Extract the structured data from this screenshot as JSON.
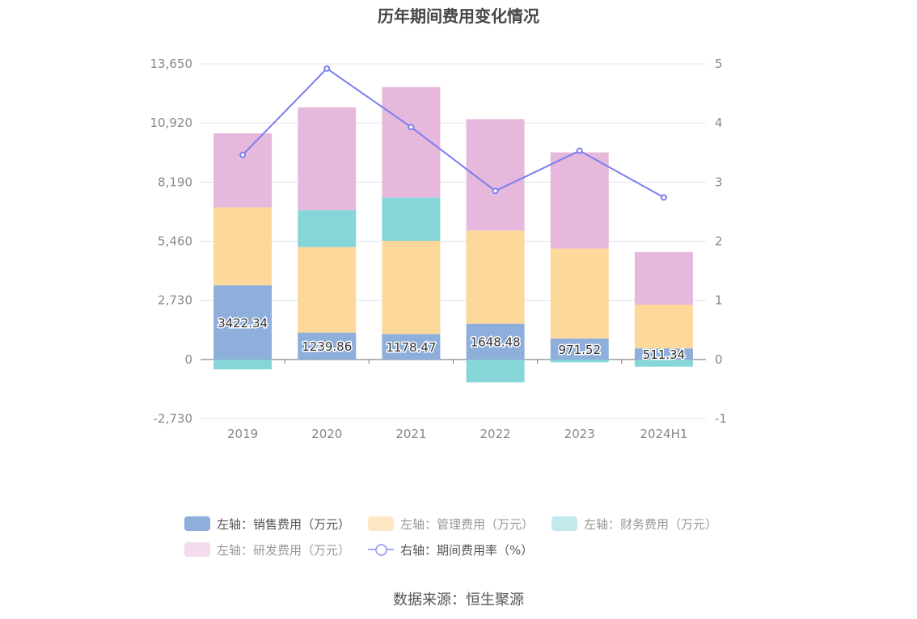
{
  "title": "历年期间费用变化情况",
  "source": "数据来源：恒生聚源",
  "colors": {
    "sales": "#8eaedb",
    "admin": "#fdd89b",
    "finance": "#86d5d8",
    "rd": "#e6b8db",
    "rate": "#7b7ef0",
    "grid": "#e0e3ef"
  },
  "legend": [
    {
      "label": "左轴：销售费用（万元）",
      "color": "#8eaedb",
      "dim": false
    },
    {
      "label": "左轴：管理费用（万元）",
      "color": "#fde7c4",
      "dim": true
    },
    {
      "label": "左轴：财务费用（万元）",
      "color": "#c2e9eb",
      "dim": true
    },
    {
      "label": "左轴：研发费用（万元）",
      "color": "#f2dcee",
      "dim": true
    },
    {
      "label": "右轴：期间费用率（%）",
      "color": "#a7a8f2",
      "dim": false
    }
  ],
  "chart_data": {
    "type": "bar",
    "stacked": true,
    "categories": [
      "2019",
      "2020",
      "2021",
      "2022",
      "2023",
      "2024H1"
    ],
    "left_axis": {
      "ticks": [
        "13,650",
        "10,920",
        "8,190",
        "5,460",
        "2,730",
        "0",
        "-2,730"
      ],
      "ylim": [
        -2730,
        13650
      ]
    },
    "right_axis": {
      "ticks": [
        "5",
        "4",
        "3",
        "2",
        "1",
        "0",
        "-1"
      ],
      "ylim": [
        -1,
        5
      ]
    },
    "series": [
      {
        "name": "左轴：销售费用（万元）",
        "axis": "left",
        "values": [
          3422.34,
          1239.86,
          1178.47,
          1648.48,
          971.52,
          511.34
        ],
        "labels": [
          "3422.34",
          "1239.86",
          "1178.47",
          "1648.48",
          "971.52",
          "511.34"
        ]
      },
      {
        "name": "左轴：管理费用（万元）",
        "axis": "left",
        "values": [
          3600,
          3950,
          4300,
          4300,
          4150,
          2020
        ]
      },
      {
        "name": "左轴：财务费用（万元）",
        "axis": "left",
        "values": [
          -460,
          1700,
          2000,
          -1060,
          -130,
          -330
        ]
      },
      {
        "name": "左轴：研发费用（万元）",
        "axis": "left",
        "values": [
          3420,
          4750,
          5100,
          5150,
          4440,
          2430
        ]
      },
      {
        "name": "右轴：期间费用率（%）",
        "axis": "right",
        "type": "line",
        "values": [
          3.46,
          4.92,
          3.93,
          2.85,
          3.53,
          2.74
        ]
      }
    ],
    "grid": true,
    "legend_position": "bottom"
  }
}
